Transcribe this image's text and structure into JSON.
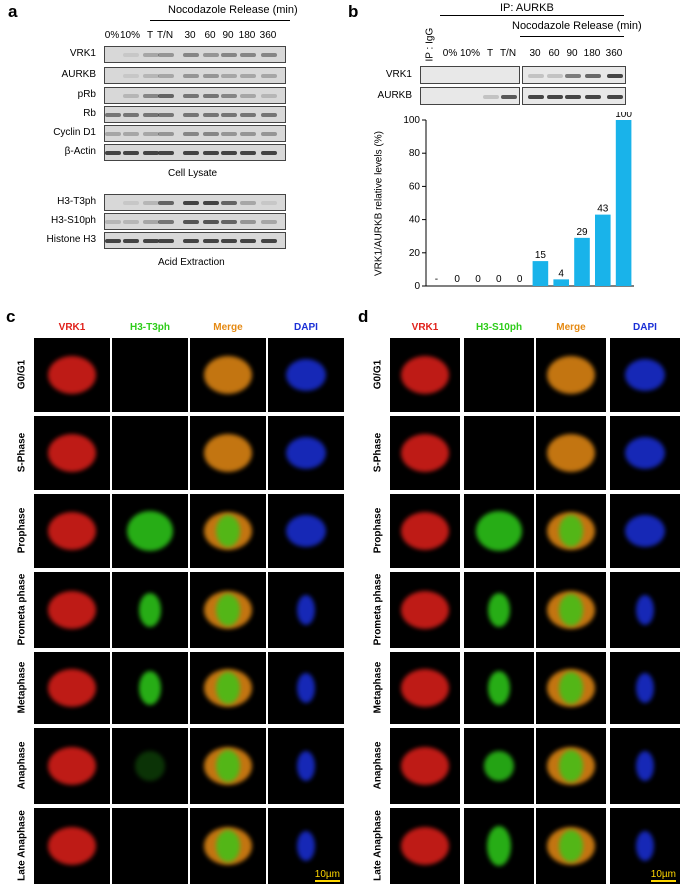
{
  "panels": {
    "a": {
      "label": "a",
      "header": "Nocodazole Release (min)",
      "lanes": [
        "0%",
        "10%",
        "T",
        "T/N",
        "30",
        "60",
        "90",
        "180",
        "360"
      ],
      "lysate_rows": [
        "VRK1",
        "AURKB",
        "pRb",
        "Rb",
        "Cyclin D1",
        "β-Actin"
      ],
      "lysate_caption": "Cell Lysate",
      "acid_rows": [
        "H3-T3ph",
        "H3-S10ph",
        "Histone H3"
      ],
      "acid_caption": "Acid Extraction"
    },
    "b": {
      "label": "b",
      "ip_header": "IP: AURKB",
      "header": "Nocodazole Release (min)",
      "lanes": [
        "IP : IgG",
        "0%",
        "10%",
        "T",
        "T/N",
        "30",
        "60",
        "90",
        "180",
        "360"
      ],
      "rows": [
        "VRK1",
        "AURKB"
      ]
    },
    "c": {
      "label": "c",
      "columns": [
        "VRK1",
        "H3-T3ph",
        "Merge",
        "DAPI"
      ],
      "rows": [
        "G0/G1",
        "S-Phase",
        "Prophase",
        "Prometa phase",
        "Metaphase",
        "Anaphase",
        "Late Anaphase"
      ],
      "scale_bar": "10µm"
    },
    "d": {
      "label": "d",
      "columns": [
        "VRK1",
        "H3-S10ph",
        "Merge",
        "DAPI"
      ],
      "rows": [
        "G0/G1",
        "S-Phase",
        "Prophase",
        "Prometa phase",
        "Metaphase",
        "Anaphase",
        "Late Anaphase"
      ],
      "scale_bar": "10µm"
    }
  },
  "colors": {
    "vrk1": "#e0201a",
    "green": "#2ecc1a",
    "merge": "#e58a14",
    "dapi": "#1a2fd6",
    "bar": "#19b3ea"
  },
  "chart_data": {
    "type": "bar",
    "categories": [
      "-",
      "0%",
      "10%",
      "T",
      "T/N",
      "30",
      "60",
      "90",
      "180",
      "360"
    ],
    "values": [
      0,
      0,
      0,
      0,
      0,
      15,
      4,
      29,
      43,
      100
    ],
    "value_labels": [
      "-",
      "0",
      "0",
      "0",
      "0",
      "15",
      "4",
      "29",
      "43",
      "100"
    ],
    "ylabel": "VRK1/AURKB relative levels (%)",
    "ylim": [
      0,
      100
    ],
    "yticks": [
      "0",
      "20",
      "40",
      "60",
      "80",
      "100"
    ]
  }
}
